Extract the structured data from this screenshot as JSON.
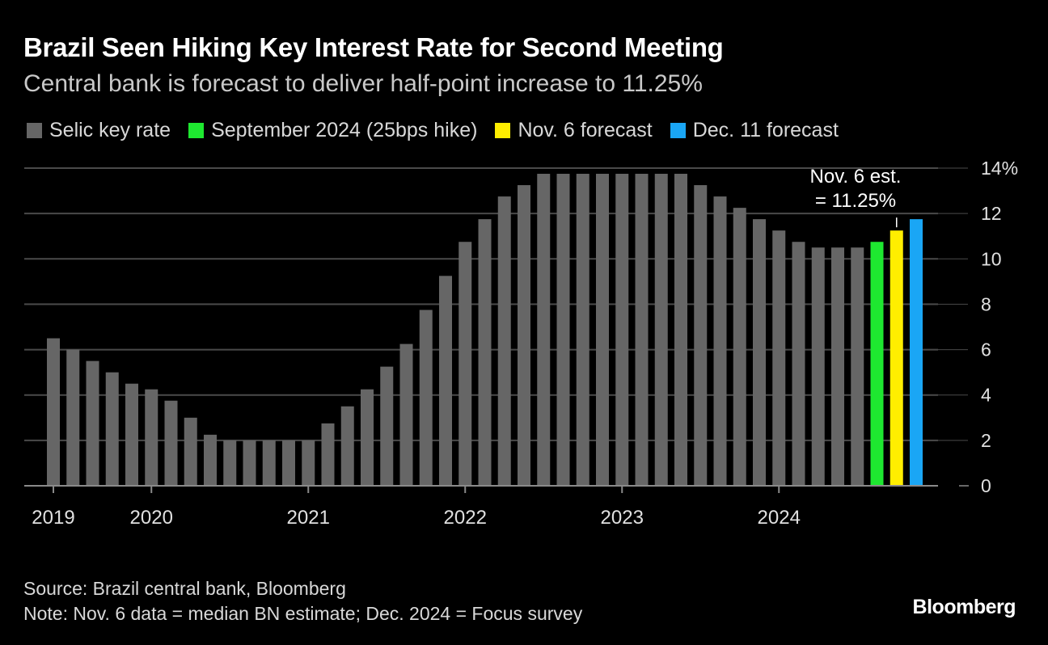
{
  "title": "Brazil Seen Hiking Key Interest Rate for Second Meeting",
  "subtitle": "Central bank is forecast to deliver half-point increase to 11.25%",
  "legend": [
    {
      "label": "Selic key rate",
      "color": "#666666"
    },
    {
      "label": "September 2024 (25bps hike)",
      "color": "#1ee830"
    },
    {
      "label": "Nov. 6 forecast",
      "color": "#ffee00"
    },
    {
      "label": "Dec. 11 forecast",
      "color": "#1aa6f5"
    }
  ],
  "chart_data": {
    "type": "bar",
    "title": "Brazil Seen Hiking Key Interest Rate for Second Meeting",
    "ylim": [
      0,
      14
    ],
    "yticks": [
      0,
      2,
      4,
      6,
      8,
      10,
      12,
      14
    ],
    "ytick_labels": [
      "0",
      "2",
      "4",
      "6",
      "8",
      "10",
      "12",
      "14%"
    ],
    "x_labels": [
      {
        "label": "2019",
        "at": 0
      },
      {
        "label": "2020",
        "at": 5
      },
      {
        "label": "2021",
        "at": 13
      },
      {
        "label": "2022",
        "at": 21
      },
      {
        "label": "2023",
        "at": 29
      },
      {
        "label": "2024",
        "at": 37
      }
    ],
    "series": [
      {
        "name": "Selic key rate",
        "values": [
          6.5,
          6.0,
          5.5,
          5.0,
          4.5,
          4.25,
          3.75,
          3.0,
          2.25,
          2.0,
          2.0,
          2.0,
          2.0,
          2.0,
          2.75,
          3.5,
          4.25,
          5.25,
          6.25,
          7.75,
          9.25,
          10.75,
          11.75,
          12.75,
          13.25,
          13.75,
          13.75,
          13.75,
          13.75,
          13.75,
          13.75,
          13.75,
          13.75,
          13.25,
          12.75,
          12.25,
          11.75,
          11.25,
          10.75,
          10.5,
          10.5,
          10.5
        ]
      },
      {
        "name": "September 2024 (25bps hike)",
        "values": [
          10.75
        ]
      },
      {
        "name": "Nov. 6 forecast",
        "values": [
          11.25
        ]
      },
      {
        "name": "Dec. 11 forecast",
        "values": [
          11.75
        ]
      }
    ],
    "annotation": {
      "line1": "Nov. 6 est.",
      "line2": "= 11.25%",
      "target_series": "Nov. 6 forecast"
    }
  },
  "footer": {
    "source": "Source: Brazil central bank, Bloomberg",
    "note": "Note: Nov. 6 data = median BN estimate; Dec. 2024 = Focus survey"
  },
  "brand": "Bloomberg"
}
